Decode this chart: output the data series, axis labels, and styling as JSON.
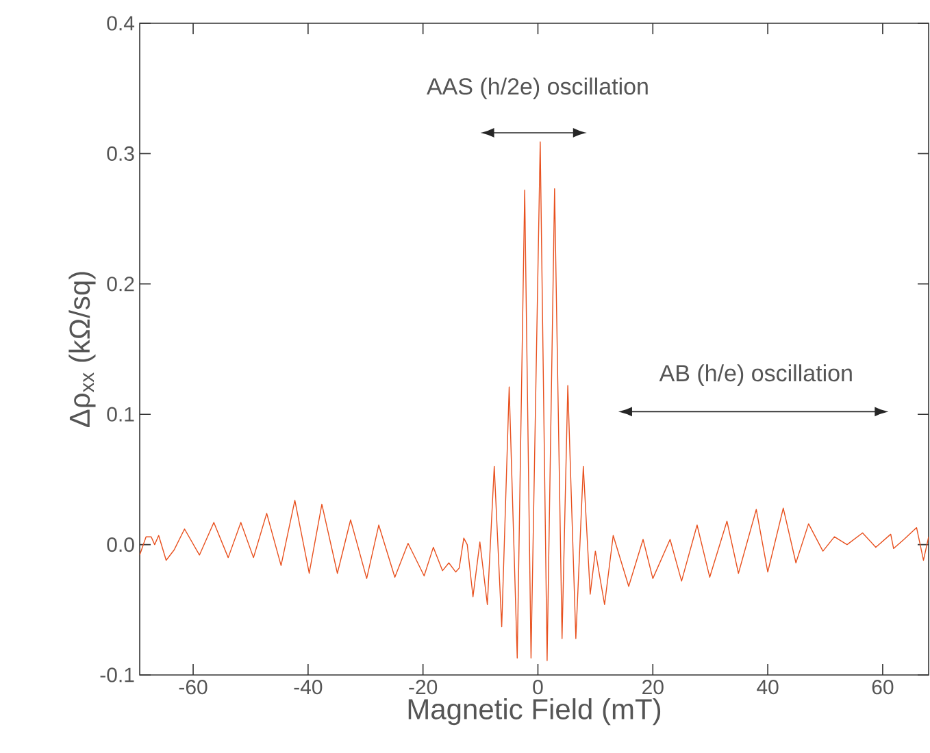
{
  "chart_data": {
    "type": "line",
    "xlabel": "Magnetic Field (mT)",
    "ylabel": "Δρ$_{xx}$ (kΩ/sq)",
    "color": "#e8501e",
    "x": [
      -69.3,
      -68.2,
      -67.3,
      -66.7,
      -66,
      -64.7,
      -63.3,
      -61.5,
      -58.9,
      -56.4,
      -53.9,
      -51.7,
      -49.5,
      -47.2,
      -44.7,
      -42.3,
      -39.8,
      -37.6,
      -34.9,
      -32.6,
      -29.8,
      -27.7,
      -24.9,
      -22.6,
      -19.8,
      -18.2,
      -16.6,
      -15.5,
      -14.3,
      -13.7,
      -12.9,
      -12.3,
      -11.3,
      -10.1,
      -8.8,
      -7.6,
      -6.3,
      -5.0,
      -3.6,
      -2.3,
      -1.2,
      0.4,
      1.6,
      2.9,
      4.2,
      5.2,
      6.6,
      7.9,
      9.1,
      10.0,
      11.6,
      13.1,
      15.8,
      18.3,
      20.0,
      23.0,
      25.0,
      27.7,
      29.9,
      32.9,
      34.9,
      38.0,
      40.0,
      42.7,
      44.9,
      47.1,
      49.6,
      51.6,
      53.8,
      56.5,
      58.8,
      61.4,
      61.9,
      63.7,
      65.9,
      67.1,
      68.0
    ],
    "values": [
      -0.008,
      0.006,
      0.006,
      0,
      0.007,
      -0.012,
      -0.004,
      0.012,
      -0.008,
      0.017,
      -0.01,
      0.017,
      -0.01,
      0.024,
      -0.016,
      0.034,
      -0.022,
      0.031,
      -0.022,
      0.019,
      -0.026,
      0.015,
      -0.025,
      0.001,
      -0.024,
      -0.002,
      -0.02,
      -0.014,
      -0.021,
      -0.018,
      0.005,
      0,
      -0.04,
      0.002,
      -0.046,
      0.06,
      -0.063,
      0.121,
      -0.087,
      0.272,
      -0.087,
      0.309,
      -0.089,
      0.273,
      -0.072,
      0.122,
      -0.072,
      0.06,
      -0.038,
      -0.005,
      -0.046,
      0.007,
      -0.032,
      0.004,
      -0.026,
      0.004,
      -0.028,
      0.015,
      -0.025,
      0.018,
      -0.022,
      0.027,
      -0.021,
      0.028,
      -0.014,
      0.016,
      -0.005,
      0.006,
      0,
      0.009,
      -0.002,
      0.008,
      -0.003,
      0.004,
      0.013,
      -0.012,
      0.006
    ],
    "xlim": [
      -69.3,
      68
    ],
    "ylim": [
      -0.1,
      0.4
    ],
    "xticks": [
      -60,
      -40,
      -20,
      0,
      20,
      40,
      60
    ],
    "yticks": [
      {
        "value": -0.1,
        "label": "-0.1"
      },
      {
        "value": 0,
        "label": "0.0"
      },
      0.1,
      0.2,
      0.3,
      0.4
    ],
    "annotations": [
      "AAS (h/2e) oscillation",
      "AB (h/e) oscillation"
    ]
  }
}
